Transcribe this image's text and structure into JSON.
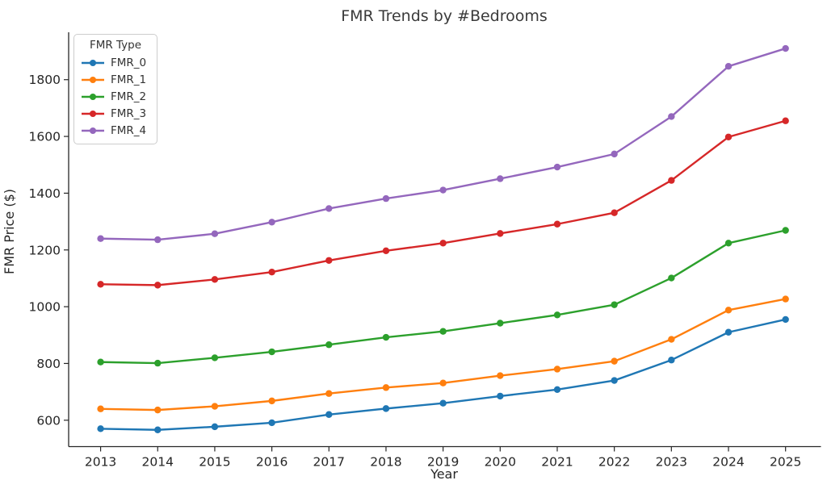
{
  "chart_data": {
    "type": "line",
    "title": "FMR Trends by #Bedrooms",
    "xlabel": "Year",
    "ylabel": "FMR Price ($)",
    "x": [
      2013,
      2014,
      2015,
      2016,
      2017,
      2018,
      2019,
      2020,
      2021,
      2022,
      2023,
      2024,
      2025
    ],
    "series": [
      {
        "name": "FMR_0",
        "color": "#1f77b4",
        "values": [
          570,
          566,
          577,
          591,
          620,
          641,
          660,
          685,
          708,
          740,
          812,
          910,
          955
        ]
      },
      {
        "name": "FMR_1",
        "color": "#ff7f0e",
        "values": [
          640,
          636,
          649,
          668,
          694,
          715,
          731,
          757,
          780,
          808,
          885,
          988,
          1027
        ]
      },
      {
        "name": "FMR_2",
        "color": "#2ca02c",
        "values": [
          805,
          801,
          820,
          841,
          866,
          892,
          913,
          942,
          971,
          1007,
          1101,
          1224,
          1269
        ]
      },
      {
        "name": "FMR_3",
        "color": "#d62728",
        "values": [
          1079,
          1076,
          1096,
          1122,
          1163,
          1197,
          1224,
          1258,
          1291,
          1331,
          1445,
          1598,
          1655
        ]
      },
      {
        "name": "FMR_4",
        "color": "#9467bd",
        "values": [
          1240,
          1236,
          1257,
          1298,
          1346,
          1381,
          1411,
          1451,
          1492,
          1538,
          1670,
          1847,
          1910
        ]
      }
    ],
    "legend": {
      "title": "FMR Type",
      "position": "upper left"
    },
    "xlim": [
      2012.44,
      2025.62
    ],
    "ylim": [
      507,
      1967
    ],
    "yticks": [
      600,
      800,
      1000,
      1200,
      1400,
      1600,
      1800
    ],
    "grid": false
  }
}
